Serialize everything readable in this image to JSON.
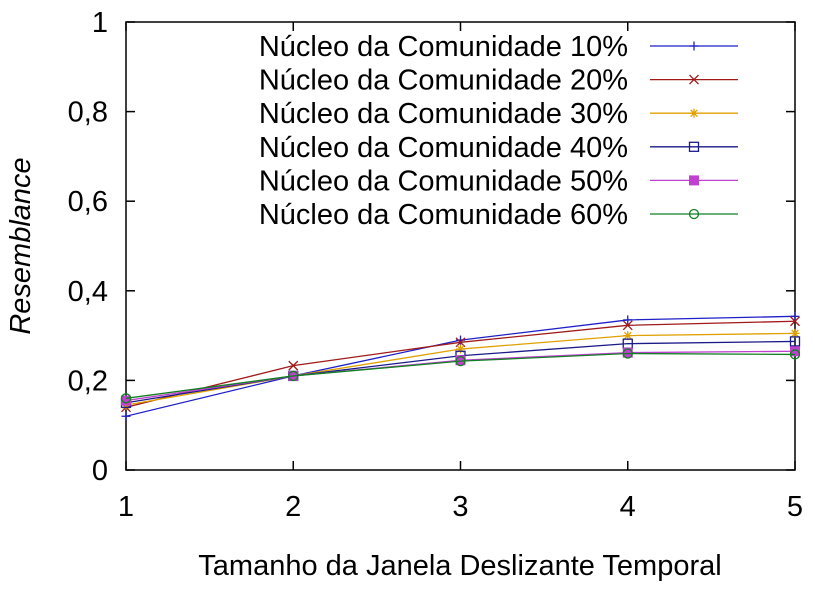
{
  "chart_data": {
    "type": "line",
    "xlabel": "Tamanho da Janela Deslizante Temporal",
    "ylabel": "Resemblance",
    "x": [
      1,
      2,
      3,
      4,
      5
    ],
    "xlim": [
      1,
      5
    ],
    "ylim": [
      0,
      1
    ],
    "xticks": [
      "1",
      "2",
      "3",
      "4",
      "5"
    ],
    "yticks": [
      {
        "value": 0,
        "label": "0"
      },
      {
        "value": 0.2,
        "label": "0,2"
      },
      {
        "value": 0.4,
        "label": "0,4"
      },
      {
        "value": 0.6,
        "label": "0,6"
      },
      {
        "value": 0.8,
        "label": "0,8"
      },
      {
        "value": 1,
        "label": "1"
      }
    ],
    "grid": false,
    "legend_position": "top-right",
    "series": [
      {
        "name": "Núcleo da Comunidade 10%",
        "color": "#1f1fc8",
        "marker": "plus",
        "values": [
          0.12,
          0.21,
          0.29,
          0.335,
          0.343
        ]
      },
      {
        "name": "Núcleo da Comunidade 20%",
        "color": "#a01a1a",
        "marker": "cross",
        "values": [
          0.14,
          0.233,
          0.285,
          0.323,
          0.332
        ]
      },
      {
        "name": "Núcleo da Comunidade 30%",
        "color": "#e0a000",
        "marker": "star",
        "values": [
          0.145,
          0.21,
          0.27,
          0.3,
          0.305
        ]
      },
      {
        "name": "Núcleo da Comunidade 40%",
        "color": "#1a1a8a",
        "marker": "square",
        "values": [
          0.15,
          0.21,
          0.255,
          0.282,
          0.287
        ]
      },
      {
        "name": "Núcleo da Comunidade 50%",
        "color": "#c040d0",
        "marker": "filled-square",
        "values": [
          0.155,
          0.21,
          0.245,
          0.262,
          0.265
        ]
      },
      {
        "name": "Núcleo da Comunidade 60%",
        "color": "#108020",
        "marker": "circle",
        "values": [
          0.16,
          0.21,
          0.243,
          0.26,
          0.258
        ]
      }
    ]
  }
}
